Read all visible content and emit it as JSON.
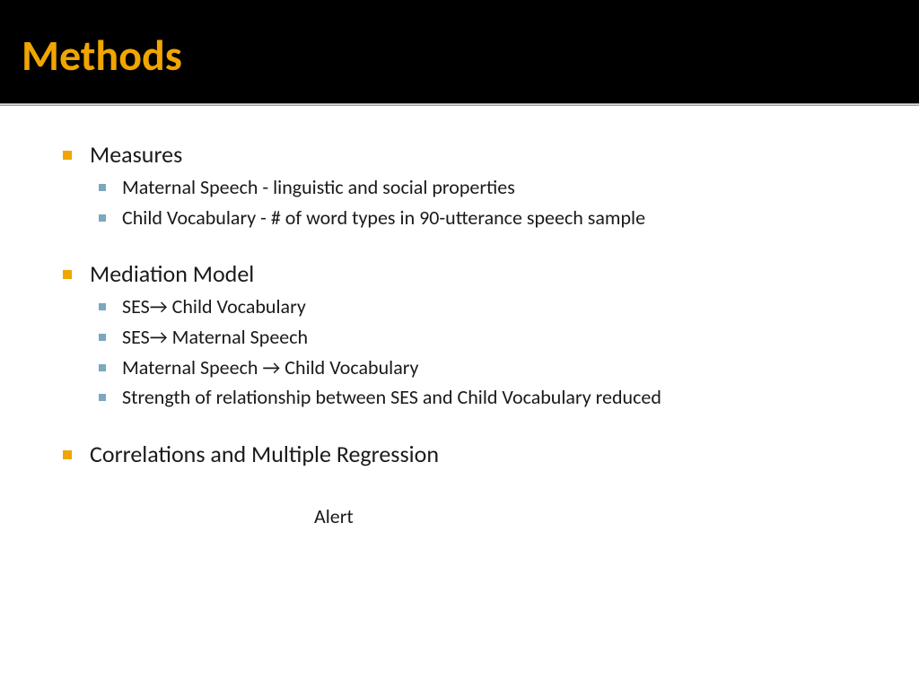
{
  "slide": {
    "title": "Methods",
    "title_color": "#f0a500",
    "header_bg": "#000000",
    "bullet_l1_color": "#f0a500",
    "bullet_l2_color": "#7ba8bf",
    "text_color": "#1a1a1a",
    "background": "#ffffff",
    "items": [
      {
        "label": "Measures",
        "sub": [
          "Maternal Speech - linguistic and social properties",
          "Child Vocabulary  - # of word types in 90-utterance speech sample"
        ]
      },
      {
        "label": "Mediation Model",
        "sub": [
          "SES→ Child Vocabulary",
          "SES→ Maternal Speech",
          "Maternal Speech → Child Vocabulary",
          "Strength of relationship between SES and Child Vocabulary reduced"
        ]
      },
      {
        "label": "Correlations and Multiple Regression",
        "sub": []
      }
    ],
    "footer_text": "Alert"
  }
}
